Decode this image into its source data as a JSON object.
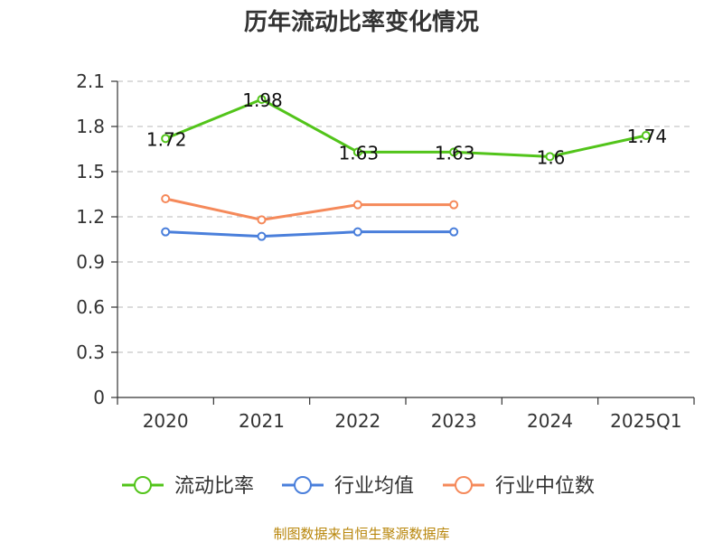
{
  "chart_data": {
    "type": "line",
    "title": "历年流动比率变化情况",
    "categories": [
      "2020",
      "2021",
      "2022",
      "2023",
      "2024",
      "2025Q1"
    ],
    "ylim": [
      0,
      2.1
    ],
    "yticks": [
      "0",
      "0.3",
      "0.6",
      "0.9",
      "1.2",
      "1.5",
      "1.8",
      "2.1"
    ],
    "grid": true,
    "legend_position": "bottom",
    "series": [
      {
        "name": "流动比率",
        "color": "#52c41a",
        "values": [
          1.72,
          1.98,
          1.63,
          1.63,
          1.6,
          1.74
        ],
        "labels": [
          "1.72",
          "1.98",
          "1.63",
          "1.63",
          "1.6",
          "1.74"
        ]
      },
      {
        "name": "行业均值",
        "color": "#4a7fdb",
        "values": [
          1.1,
          1.07,
          1.1,
          1.1,
          null,
          null
        ]
      },
      {
        "name": "行业中位数",
        "color": "#f5895a",
        "values": [
          1.32,
          1.18,
          1.28,
          1.28,
          null,
          null
        ]
      }
    ],
    "source": "制图数据来自恒生聚源数据库"
  }
}
